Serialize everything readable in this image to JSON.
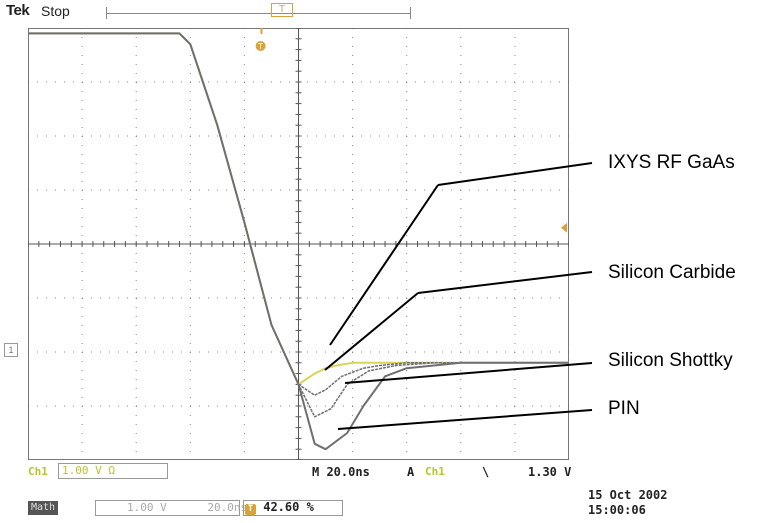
{
  "header": {
    "brand": "Tek",
    "acquisition_state": "Stop",
    "trigger_position_marker": "T"
  },
  "scope": {
    "graticule": {
      "divisions_x": 10,
      "divisions_y": 8
    },
    "ground_marker": "1",
    "trigger_level_marker": "T",
    "colors": {
      "trace": "#6f6f6f",
      "trace_yellow": "#d8d35a",
      "trigger": "#d9a23b",
      "grid": "#555555",
      "channel": "#b7c332"
    },
    "chart_data": {
      "type": "line",
      "xlabel": "",
      "ylabel": "",
      "x_unit": "divisions (20.0ns/div)",
      "y_unit": "divisions (1.00V/div)",
      "xlim": [
        0,
        10
      ],
      "ylim": [
        -4,
        4
      ],
      "grid": true,
      "series": [
        {
          "name": "IXYS RF GaAs",
          "x": [
            0,
            1,
            2,
            2.8,
            3.0,
            3.5,
            4.0,
            4.5,
            5.0,
            5.3,
            5.5,
            5.7,
            6.0,
            6.5,
            7.0,
            8.0,
            9.0,
            10.0
          ],
          "y": [
            3.9,
            3.9,
            3.9,
            3.9,
            3.7,
            2.2,
            0.4,
            -1.5,
            -2.6,
            -2.4,
            -2.3,
            -2.25,
            -2.2,
            -2.2,
            -2.2,
            -2.2,
            -2.2,
            -2.2
          ]
        },
        {
          "name": "Silicon Carbide",
          "x": [
            0,
            1,
            2,
            2.8,
            3.0,
            3.5,
            4.0,
            4.5,
            5.0,
            5.3,
            5.5,
            5.8,
            6.2,
            6.5,
            7.0,
            8.0,
            9.0,
            10.0
          ],
          "y": [
            3.9,
            3.9,
            3.9,
            3.9,
            3.7,
            2.2,
            0.4,
            -1.5,
            -2.6,
            -2.8,
            -2.7,
            -2.45,
            -2.3,
            -2.25,
            -2.2,
            -2.2,
            -2.2,
            -2.2
          ]
        },
        {
          "name": "Silicon Shottky",
          "x": [
            0,
            1,
            2,
            2.8,
            3.0,
            3.5,
            4.0,
            4.5,
            5.0,
            5.3,
            5.6,
            5.9,
            6.3,
            6.8,
            7.5,
            8.0,
            9.0,
            10.0
          ],
          "y": [
            3.9,
            3.9,
            3.9,
            3.9,
            3.7,
            2.2,
            0.4,
            -1.5,
            -2.6,
            -3.2,
            -3.05,
            -2.6,
            -2.35,
            -2.25,
            -2.2,
            -2.2,
            -2.2,
            -2.2
          ]
        },
        {
          "name": "PIN",
          "x": [
            0,
            1,
            2,
            2.8,
            3.0,
            3.5,
            4.0,
            4.5,
            5.0,
            5.3,
            5.5,
            5.9,
            6.2,
            6.6,
            7.0,
            8.0,
            9.0,
            10.0
          ],
          "y": [
            3.9,
            3.9,
            3.9,
            3.9,
            3.7,
            2.2,
            0.4,
            -1.5,
            -2.6,
            -3.7,
            -3.8,
            -3.5,
            -3.0,
            -2.45,
            -2.3,
            -2.2,
            -2.2,
            -2.2
          ]
        }
      ]
    }
  },
  "callouts": [
    {
      "label": "IXYS RF GaAs"
    },
    {
      "label": "Silicon Carbide"
    },
    {
      "label": "Silicon Shottky"
    },
    {
      "label": "PIN"
    }
  ],
  "footer": {
    "ch1_label": "Ch1",
    "ch1_scale": "1.00 V Ω",
    "timebase": "M 20.0ns",
    "trigger_label": "A",
    "trigger_source": "Ch1",
    "trigger_slope_symbol": "\\",
    "trigger_level": "1.30 V",
    "math_label": "Math",
    "math_scale": "1.00 V",
    "math_time": "20.0ns",
    "trigger_position_icon": "T",
    "trigger_position": "42.60 %",
    "date": "15 Oct  2002",
    "time": "15:00:06"
  }
}
